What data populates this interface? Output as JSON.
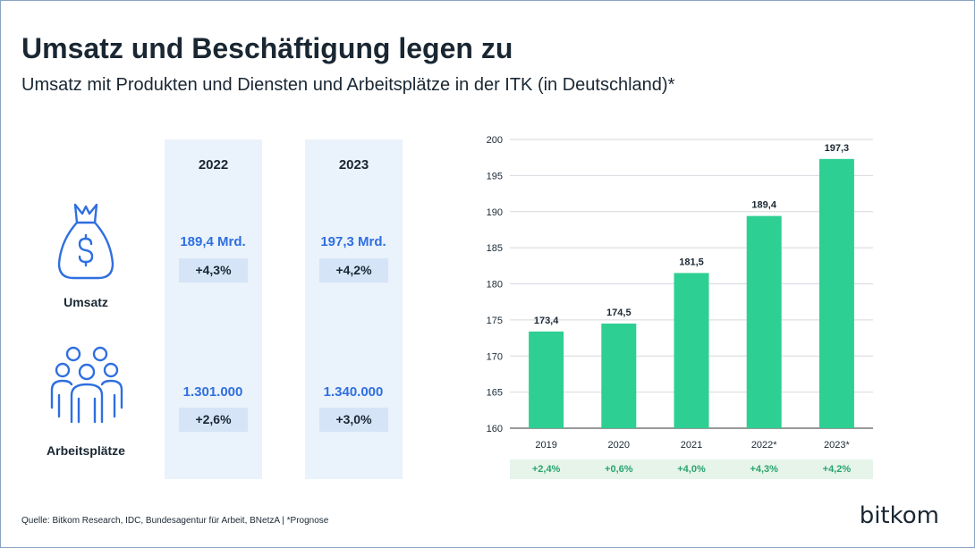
{
  "title": "Umsatz und Beschäftigung legen zu",
  "subtitle": "Umsatz mit Produkten und Diensten und Arbeitsplätze in der ITK (in Deutschland)*",
  "table": {
    "years": [
      "2022",
      "2023"
    ],
    "rows": [
      {
        "label": "Umsatz",
        "icon": "money-bag-icon",
        "values": [
          "189,4 Mrd.",
          "197,3 Mrd."
        ],
        "changes": [
          "+4,3%",
          "+4,2%"
        ]
      },
      {
        "label": "Arbeitsplätze",
        "icon": "people-group-icon",
        "values": [
          "1.301.000",
          "1.340.000"
        ],
        "changes": [
          "+2,6%",
          "+3,0%"
        ]
      }
    ]
  },
  "chart_data": {
    "type": "bar",
    "categories": [
      "2019",
      "2020",
      "2021",
      "2022*",
      "2023*"
    ],
    "values": [
      173.4,
      174.5,
      181.5,
      189.4,
      197.3
    ],
    "value_labels": [
      "173,4",
      "174,5",
      "181,5",
      "189,4",
      "197,3"
    ],
    "growth": [
      "+2,4%",
      "+0,6%",
      "+4,0%",
      "+4,3%",
      "+4,2%"
    ],
    "yticks": [
      "160",
      "165",
      "170",
      "175",
      "180",
      "185",
      "190",
      "195",
      "200"
    ],
    "ylim": [
      160,
      200
    ],
    "grid": true,
    "bar_color": "#2ecf93"
  },
  "colors": {
    "accent_blue": "#2f6fe0",
    "bar_green": "#2ecf93",
    "growth_green": "#2aa46d",
    "column_bg": "#eaf2fb"
  },
  "footer": {
    "source": "Quelle: Bitkom Research, IDC, Bundesagentur für Arbeit, BNetzA | *Prognose",
    "logo": "bitkom"
  }
}
